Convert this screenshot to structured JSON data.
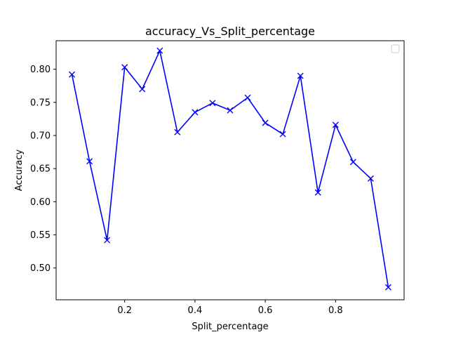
{
  "chart_data": {
    "type": "line",
    "title": "accuracy_Vs_Split_percentage",
    "xlabel": "Split_percentage",
    "ylabel": "Accuracy",
    "xlim": [
      0.005,
      0.995
    ],
    "ylim": [
      0.452,
      0.843
    ],
    "x_ticks": [
      0.2,
      0.4,
      0.6,
      0.8
    ],
    "x_tick_labels": [
      "0.2",
      "0.4",
      "0.6",
      "0.8"
    ],
    "y_ticks": [
      0.5,
      0.55,
      0.6,
      0.65,
      0.7,
      0.75,
      0.8
    ],
    "y_tick_labels": [
      "0.50",
      "0.55",
      "0.60",
      "0.65",
      "0.70",
      "0.75",
      "0.80"
    ],
    "grid": false,
    "legend": {
      "placement": "top-right",
      "entries": []
    },
    "series": [
      {
        "color": "#0000ff",
        "marker": "x",
        "x": [
          0.05,
          0.1,
          0.15,
          0.2,
          0.25,
          0.3,
          0.35,
          0.4,
          0.45,
          0.5,
          0.55,
          0.6,
          0.65,
          0.7,
          0.75,
          0.8,
          0.85,
          0.9,
          0.95
        ],
        "y": [
          0.792,
          0.661,
          0.542,
          0.803,
          0.77,
          0.828,
          0.705,
          0.735,
          0.749,
          0.738,
          0.757,
          0.719,
          0.702,
          0.79,
          0.614,
          0.716,
          0.66,
          0.635,
          0.471
        ]
      }
    ]
  }
}
